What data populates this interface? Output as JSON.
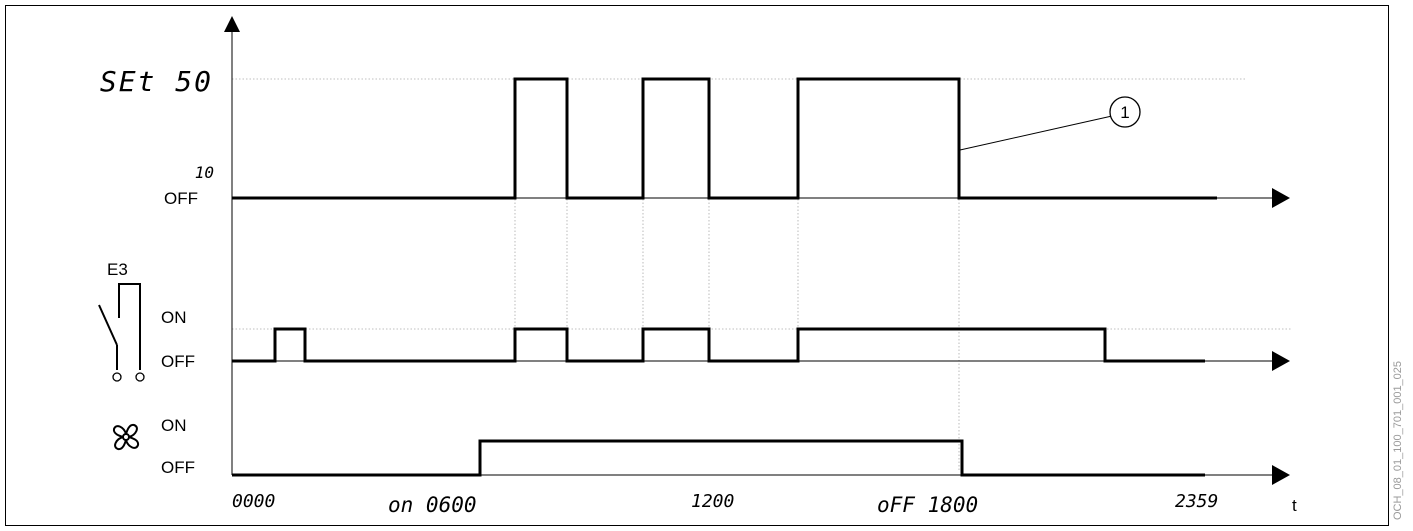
{
  "top_chart": {
    "label_set": "SEt 50",
    "label_level": "10",
    "label_off": "OFF",
    "callout_number": "1"
  },
  "contact_chart": {
    "label_name": "E3",
    "label_on": "ON",
    "label_off": "OFF"
  },
  "fan_chart": {
    "label_on": "ON",
    "label_off": "OFF"
  },
  "time_axis": {
    "tick_start": "0000",
    "tick_on": "on 0600",
    "tick_mid": "1200",
    "tick_off": "oFF 1800",
    "tick_end": "2359",
    "axis_symbol": "t"
  },
  "document_id": "OCH_08_01_100_701_001_025"
}
